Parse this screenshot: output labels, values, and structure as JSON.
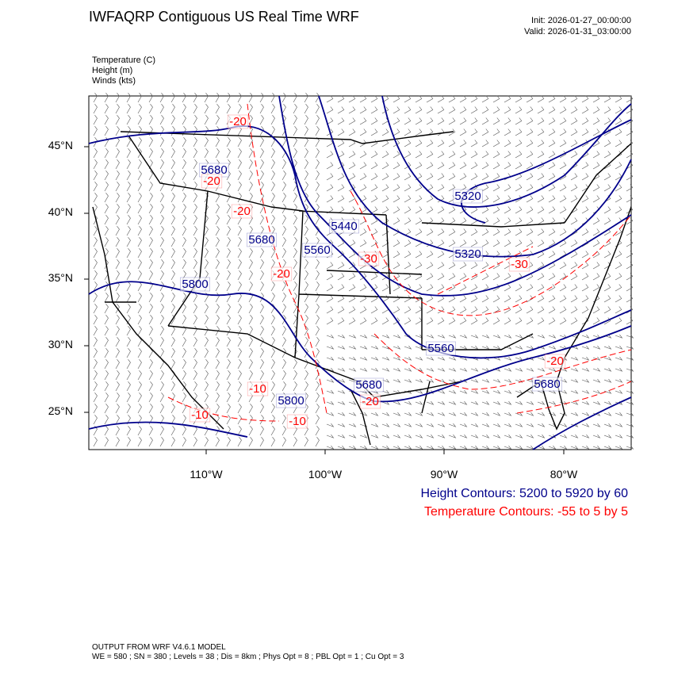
{
  "title": "IWFAQRP Contiguous US Real Time WRF",
  "init": "Init: 2026-01-27_00:00:00",
  "valid": "Valid: 2026-01-31_03:00:00",
  "fields": [
    "Temperature   (C)",
    "Height   (m)",
    "Winds   (kts)"
  ],
  "lat_ticks": [
    "45°N",
    "40°N",
    "35°N",
    "30°N",
    "25°N"
  ],
  "lon_ticks": [
    "110°W",
    "100°W",
    "90°W",
    "80°W"
  ],
  "height_label_color": "#00008b",
  "temperature_label_color": "#ff0000",
  "height_contours_text": "Height Contours: 5200 to 5920 by 60",
  "temperature_contours_text": "Temperature Contours: -55 to 5 by 5",
  "height_labels": [
    "5680",
    "5680",
    "5560",
    "5440",
    "5320",
    "5320",
    "5800",
    "5560",
    "5680",
    "5800",
    "5680"
  ],
  "temperature_labels": [
    "-20",
    "-20",
    "-20",
    "-20",
    "-30",
    "-30",
    "-20",
    "-10",
    "-10",
    "-10",
    "-20"
  ],
  "footer": {
    "line1": "OUTPUT FROM WRF V4.6.1 MODEL",
    "line2": "WE = 580 ; SN = 380 ; Levels = 38 ; Dis = 8km ; Phys Opt = 8 ; PBL Opt = 1 ; Cu Opt = 3"
  }
}
